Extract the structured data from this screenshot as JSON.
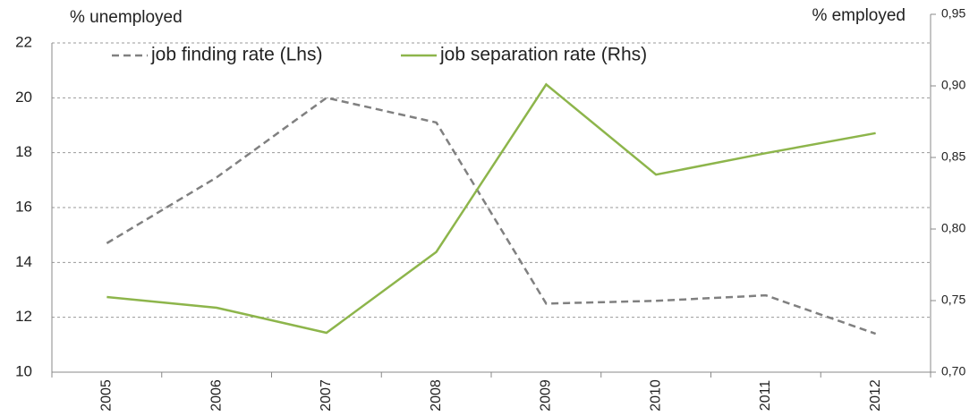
{
  "chart_data": {
    "type": "line",
    "y_label": "% unemployed",
    "y2_label": "% employed",
    "categories": [
      "2005",
      "2006",
      "2007",
      "2008",
      "2009",
      "2010",
      "2011",
      "2012"
    ],
    "series": [
      {
        "name": "job finding rate (Lhs)",
        "color": "#808080",
        "dash": true,
        "values": [
          14.7,
          17.1,
          20.0,
          19.1,
          12.5,
          12.6,
          12.8,
          11.4
        ]
      },
      {
        "name": "job separation rate (Rhs)",
        "color": "#8db54b",
        "axis": "y2",
        "values": [
          0.7525,
          0.745,
          0.7275,
          0.784,
          0.901,
          0.838,
          0.853,
          0.867
        ]
      }
    ],
    "ylim": [
      10,
      22
    ],
    "yticks": [
      10,
      12,
      14,
      16,
      18,
      20,
      22
    ],
    "y2lim": [
      0.7,
      0.95
    ],
    "y2ticks": [
      {
        "value": 0.7,
        "label": "0,70"
      },
      {
        "value": 0.75,
        "label": "0,75"
      },
      {
        "value": 0.8,
        "label": "0,80"
      },
      {
        "value": 0.85,
        "label": "0,85"
      },
      {
        "value": 0.9,
        "label": "0,90"
      },
      {
        "value": 0.95,
        "label": "0,95"
      }
    ],
    "grid": true
  }
}
